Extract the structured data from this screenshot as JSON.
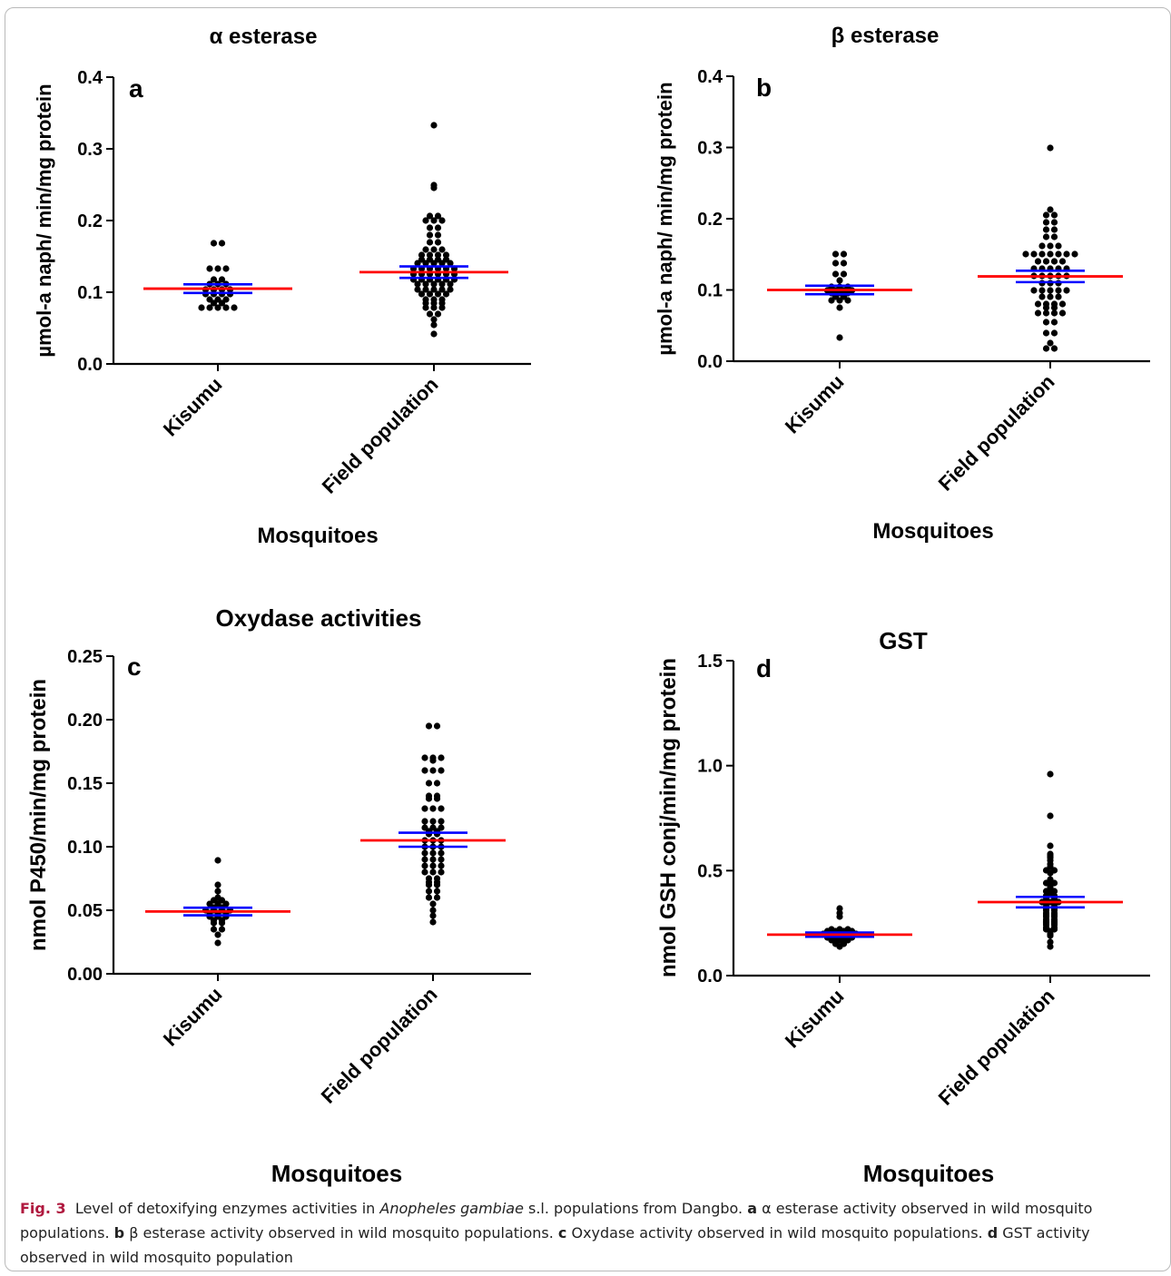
{
  "chart_data": [
    {
      "type": "scatter",
      "panel_label": "a",
      "title": "α esterase",
      "ylabel": "µmol-a naph/ min/mg protein",
      "xlabel": "Mosquitoes",
      "ylim": [
        0,
        0.4
      ],
      "yticks": [
        "0.0",
        "0.1",
        "0.2",
        "0.3",
        "0.4"
      ],
      "categories": [
        "Kisumu",
        "Field population"
      ],
      "groups": [
        {
          "name": "Kisumu",
          "mean": 0.105,
          "sem": [
            0.099,
            0.111
          ],
          "values": [
            0.168,
            0.168,
            0.133,
            0.133,
            0.133,
            0.118,
            0.118,
            0.111,
            0.111,
            0.111,
            0.104,
            0.104,
            0.104,
            0.104,
            0.097,
            0.097,
            0.097,
            0.097,
            0.09,
            0.09,
            0.09,
            0.085,
            0.085,
            0.078,
            0.078,
            0.078,
            0.078,
            0.078
          ]
        },
        {
          "name": "Field population",
          "mean": 0.128,
          "sem": [
            0.12,
            0.136
          ],
          "values": [
            0.333,
            0.25,
            0.245,
            0.206,
            0.206,
            0.2,
            0.2,
            0.2,
            0.19,
            0.19,
            0.18,
            0.18,
            0.17,
            0.17,
            0.16,
            0.16,
            0.16,
            0.152,
            0.152,
            0.152,
            0.152,
            0.145,
            0.145,
            0.145,
            0.145,
            0.14,
            0.14,
            0.14,
            0.14,
            0.14,
            0.133,
            0.133,
            0.133,
            0.133,
            0.133,
            0.133,
            0.125,
            0.125,
            0.125,
            0.125,
            0.125,
            0.125,
            0.118,
            0.118,
            0.118,
            0.118,
            0.118,
            0.118,
            0.111,
            0.111,
            0.111,
            0.111,
            0.111,
            0.104,
            0.104,
            0.104,
            0.104,
            0.104,
            0.097,
            0.097,
            0.097,
            0.097,
            0.09,
            0.09,
            0.09,
            0.085,
            0.085,
            0.085,
            0.078,
            0.078,
            0.078,
            0.07,
            0.07,
            0.062,
            0.055,
            0.042
          ]
        }
      ]
    },
    {
      "type": "scatter",
      "panel_label": "b",
      "title": "β esterase",
      "ylabel": "µmol-a naph/ min/mg protein",
      "xlabel": "Mosquitoes",
      "ylim": [
        0,
        0.4
      ],
      "yticks": [
        "0.0",
        "0.1",
        "0.2",
        "0.3",
        "0.4"
      ],
      "categories": [
        "Kisumu",
        "Field population"
      ],
      "groups": [
        {
          "name": "Kisumu",
          "mean": 0.1,
          "sem": [
            0.094,
            0.106
          ],
          "values": [
            0.15,
            0.15,
            0.138,
            0.138,
            0.122,
            0.122,
            0.113,
            0.105,
            0.105,
            0.105,
            0.1,
            0.1,
            0.1,
            0.1,
            0.095,
            0.095,
            0.095,
            0.09,
            0.09,
            0.085,
            0.085,
            0.085,
            0.075,
            0.033
          ]
        },
        {
          "name": "Field population",
          "mean": 0.119,
          "sem": [
            0.111,
            0.127
          ],
          "values": [
            0.3,
            0.213,
            0.205,
            0.205,
            0.195,
            0.195,
            0.185,
            0.185,
            0.175,
            0.175,
            0.162,
            0.162,
            0.162,
            0.15,
            0.15,
            0.15,
            0.15,
            0.15,
            0.15,
            0.15,
            0.14,
            0.14,
            0.14,
            0.14,
            0.13,
            0.13,
            0.13,
            0.13,
            0.13,
            0.12,
            0.12,
            0.12,
            0.12,
            0.12,
            0.11,
            0.11,
            0.11,
            0.1,
            0.1,
            0.1,
            0.1,
            0.1,
            0.09,
            0.09,
            0.09,
            0.08,
            0.08,
            0.08,
            0.08,
            0.075,
            0.075,
            0.068,
            0.068,
            0.068,
            0.068,
            0.055,
            0.055,
            0.04,
            0.04,
            0.025,
            0.018,
            0.018
          ]
        }
      ]
    },
    {
      "type": "scatter",
      "panel_label": "c",
      "title": "Oxydase activities",
      "ylabel": "nmol P450/min/mg protein",
      "xlabel": "Mosquitoes",
      "ylim": [
        0,
        0.25
      ],
      "yticks": [
        "0.00",
        "0.05",
        "0.10",
        "0.15",
        "0.20",
        "0.25"
      ],
      "categories": [
        "Kisumu",
        "Field population"
      ],
      "groups": [
        {
          "name": "Kisumu",
          "mean": 0.049,
          "sem": [
            0.046,
            0.052
          ],
          "values": [
            0.089,
            0.07,
            0.065,
            0.06,
            0.058,
            0.058,
            0.055,
            0.055,
            0.055,
            0.052,
            0.052,
            0.05,
            0.05,
            0.05,
            0.05,
            0.048,
            0.048,
            0.048,
            0.045,
            0.045,
            0.045,
            0.042,
            0.042,
            0.04,
            0.04,
            0.035,
            0.035,
            0.031,
            0.024
          ]
        },
        {
          "name": "Field population",
          "mean": 0.105,
          "sem": [
            0.1,
            0.111
          ],
          "values": [
            0.195,
            0.195,
            0.17,
            0.17,
            0.17,
            0.168,
            0.16,
            0.16,
            0.16,
            0.15,
            0.15,
            0.14,
            0.14,
            0.138,
            0.138,
            0.13,
            0.13,
            0.13,
            0.12,
            0.12,
            0.12,
            0.115,
            0.115,
            0.115,
            0.112,
            0.112,
            0.11,
            0.11,
            0.105,
            0.105,
            0.105,
            0.1,
            0.1,
            0.1,
            0.095,
            0.095,
            0.095,
            0.09,
            0.09,
            0.09,
            0.085,
            0.085,
            0.085,
            0.08,
            0.08,
            0.08,
            0.075,
            0.075,
            0.072,
            0.072,
            0.07,
            0.07,
            0.065,
            0.065,
            0.06,
            0.06,
            0.055,
            0.05,
            0.046,
            0.041
          ]
        }
      ]
    },
    {
      "type": "scatter",
      "panel_label": "d",
      "title": "GST",
      "ylabel": "nmol GSH conj/min/mg protein",
      "xlabel": "Mosquitoes",
      "ylim": [
        0,
        1.5
      ],
      "yticks": [
        "0.0",
        "0.5",
        "1.0",
        "1.5"
      ],
      "categories": [
        "Kisumu",
        "Field population"
      ],
      "groups": [
        {
          "name": "Kisumu",
          "mean": 0.195,
          "sem": [
            0.185,
            0.205
          ],
          "values": [
            0.32,
            0.3,
            0.28,
            0.22,
            0.22,
            0.22,
            0.21,
            0.21,
            0.21,
            0.21,
            0.2,
            0.2,
            0.2,
            0.2,
            0.2,
            0.19,
            0.19,
            0.19,
            0.19,
            0.18,
            0.18,
            0.18,
            0.18,
            0.17,
            0.17,
            0.17,
            0.16,
            0.16,
            0.15,
            0.15,
            0.14
          ]
        },
        {
          "name": "Field population",
          "mean": 0.35,
          "sem": [
            0.325,
            0.375
          ],
          "values": [
            0.96,
            0.76,
            0.62,
            0.58,
            0.57,
            0.56,
            0.55,
            0.53,
            0.52,
            0.5,
            0.5,
            0.49,
            0.46,
            0.45,
            0.44,
            0.44,
            0.43,
            0.42,
            0.41,
            0.4,
            0.4,
            0.39,
            0.38,
            0.38,
            0.37,
            0.37,
            0.36,
            0.36,
            0.35,
            0.35,
            0.35,
            0.34,
            0.34,
            0.33,
            0.33,
            0.32,
            0.32,
            0.31,
            0.31,
            0.3,
            0.3,
            0.29,
            0.29,
            0.28,
            0.28,
            0.27,
            0.27,
            0.26,
            0.26,
            0.25,
            0.25,
            0.24,
            0.24,
            0.23,
            0.23,
            0.22,
            0.22,
            0.21,
            0.2,
            0.19,
            0.16,
            0.14
          ]
        }
      ]
    }
  ],
  "caption": {
    "fig_label": "Fig. 3",
    "text_1": "Level of detoxifying enzymes activities in ",
    "species": "Anopheles gambiae",
    "text_2": " s.l. populations from Dangbo. ",
    "a_label": "a",
    "a_text": " α esterase activity observed in wild mosquito populations. ",
    "b_label": "b",
    "b_text": " β esterase activity observed in wild mosquito populations. ",
    "c_label": "c",
    "c_text": " Oxydase activity observed in wild mosquito populations. ",
    "d_label": "d",
    "d_text": " GST activity observed in wild mosquito population"
  },
  "colors": {
    "mean_line": "#ff0000",
    "sem_line": "#0000ff",
    "dot": "#000000",
    "fig_label": "#b0193f"
  }
}
